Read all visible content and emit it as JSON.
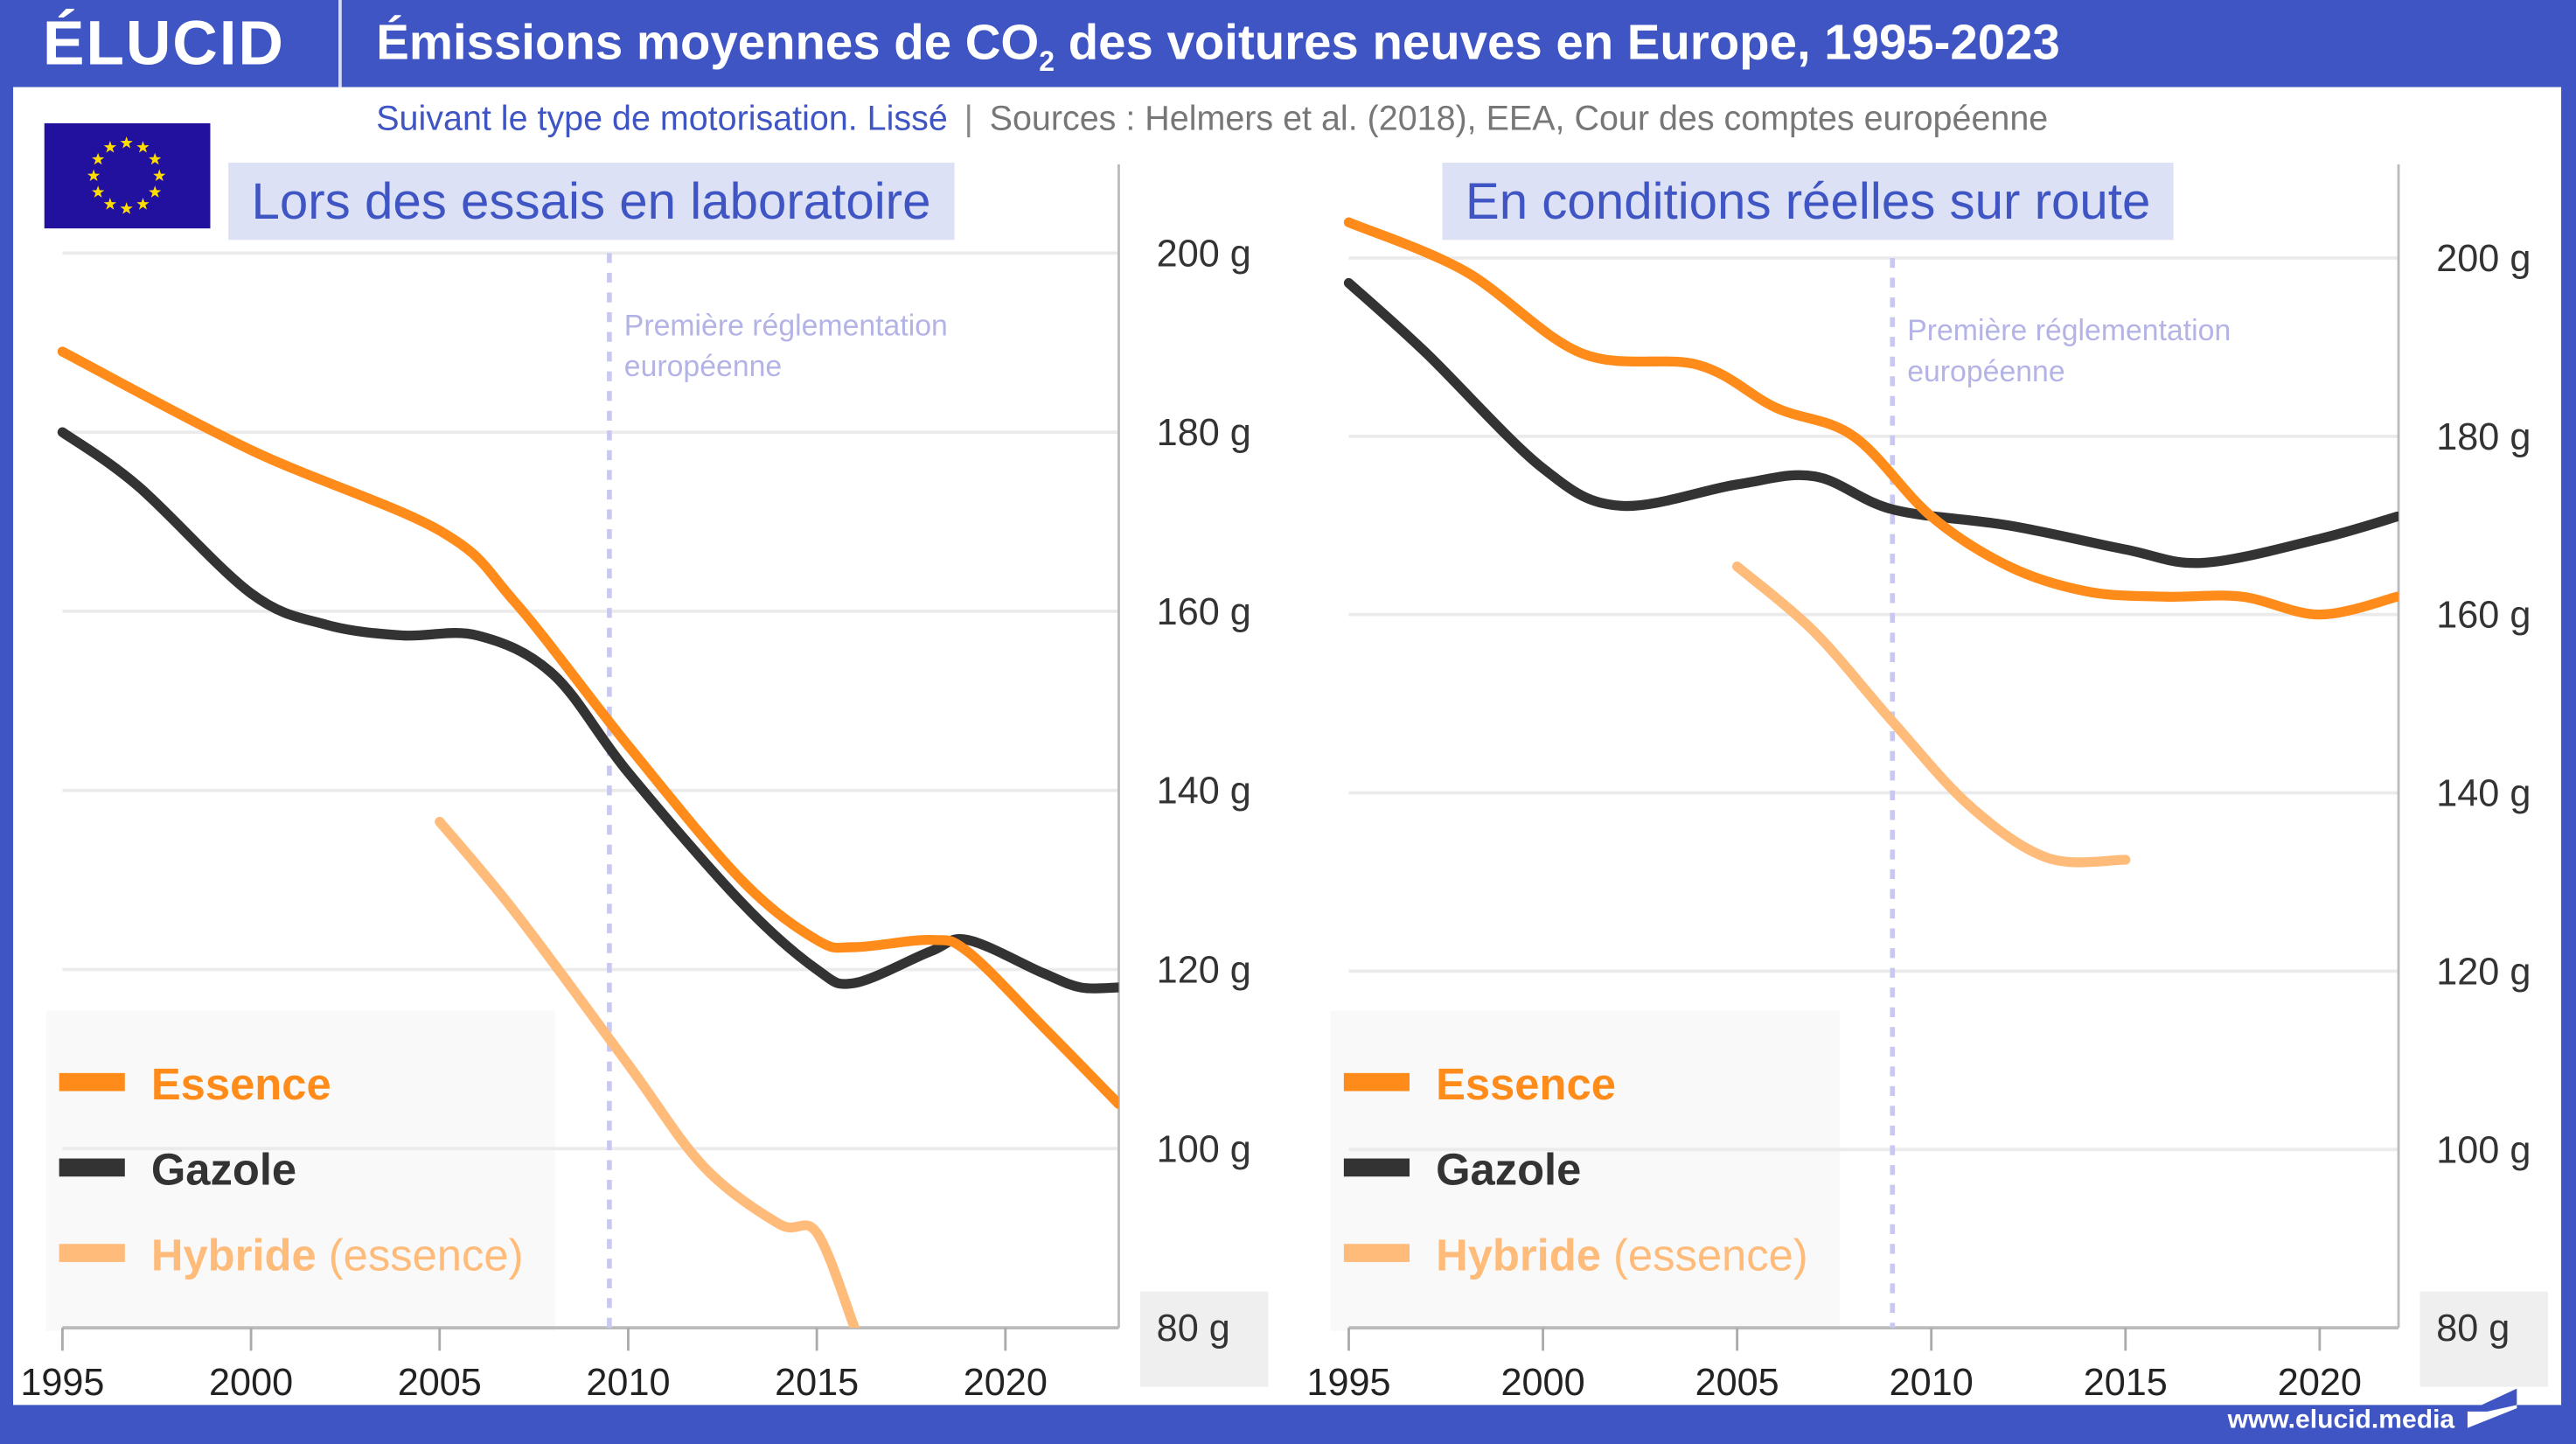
{
  "header": {
    "logo": "ÉLUCID",
    "title_pre": "Émissions moyennes de CO",
    "title_sub": "2",
    "title_post": " des voitures neuves en Europe, 1995-2023",
    "subtitle": "Suivant le type de motorisation. Lissé",
    "separator": "|",
    "sources": "Sources : Helmers et al. (2018), EEA, Cour des comptes européenne"
  },
  "footer": {
    "url": "www.elucid.media"
  },
  "colors": {
    "brand": "#3f55c4",
    "essence": "#ff8c1a",
    "gazole": "#333333",
    "hybride": "#ffbb7a",
    "regulation": "#c8c8f0",
    "panel_title_bg": "#dde1f5"
  },
  "icons": {
    "flag": "eu-flag-icon",
    "footer_logo": "elucid-chevron-icon"
  },
  "chart_data": [
    {
      "type": "line",
      "title": "Lors des essais en laboratoire",
      "xlim": [
        1995,
        2023
      ],
      "ylim": [
        80,
        200
      ],
      "x_ticks": [
        "1995",
        "2000",
        "2005",
        "2010",
        "2015",
        "2020"
      ],
      "y_ticks": [
        "200 g",
        "180 g",
        "160 g",
        "140 g",
        "120 g",
        "100 g",
        "80 g"
      ],
      "y_tick_values": [
        200,
        180,
        160,
        140,
        120,
        100,
        80
      ],
      "grid": true,
      "legend_placement": "bottom-left",
      "annotation": {
        "text": [
          "Première réglementation",
          "européenne"
        ],
        "x": 2009.5
      },
      "series": [
        {
          "name": "Essence",
          "color": "#ff8c1a",
          "points": [
            [
              1995,
              189
            ],
            [
              2000,
              178
            ],
            [
              2005,
              169
            ],
            [
              2007,
              161
            ],
            [
              2010,
              145
            ],
            [
              2013,
              130
            ],
            [
              2015,
              123.3
            ],
            [
              2016,
              122.5
            ],
            [
              2018,
              123.3
            ],
            [
              2019,
              122
            ],
            [
              2021,
              113.6
            ],
            [
              2023,
              105
            ]
          ]
        },
        {
          "name": "Gazole",
          "color": "#333333",
          "points": [
            [
              1995,
              180
            ],
            [
              1997,
              174
            ],
            [
              2000,
              162
            ],
            [
              2002,
              158.5
            ],
            [
              2004,
              157.3
            ],
            [
              2006,
              157.3
            ],
            [
              2008,
              153
            ],
            [
              2010,
              142
            ],
            [
              2013,
              127.5
            ],
            [
              2015,
              120
            ],
            [
              2016,
              118.5
            ],
            [
              2018,
              122
            ],
            [
              2019,
              123.3
            ],
            [
              2021,
              119.6
            ],
            [
              2022,
              118
            ],
            [
              2023,
              118
            ]
          ]
        },
        {
          "name": "Hybride",
          "name_suffix": " (essence)",
          "color": "#ffbb7a",
          "points": [
            [
              2005,
              136.5
            ],
            [
              2007,
              126.4
            ],
            [
              2010,
              109.4
            ],
            [
              2012,
              98
            ],
            [
              2014,
              91.6
            ],
            [
              2015,
              90.6
            ],
            [
              2016,
              80
            ]
          ]
        }
      ]
    },
    {
      "type": "line",
      "title": "En conditions réelles sur route",
      "xlim": [
        1995,
        2022
      ],
      "ylim": [
        80,
        200
      ],
      "x_ticks": [
        "1995",
        "2000",
        "2005",
        "2010",
        "2015",
        "2020"
      ],
      "y_ticks": [
        "200 g",
        "180 g",
        "160 g",
        "140 g",
        "120 g",
        "100 g",
        "80 g"
      ],
      "y_tick_values": [
        200,
        180,
        160,
        140,
        120,
        100,
        80
      ],
      "grid": true,
      "legend_placement": "bottom-left",
      "annotation": {
        "text": [
          "Première réglementation",
          "européenne"
        ],
        "x": 2009
      },
      "series": [
        {
          "name": "Essence",
          "color": "#ff8c1a",
          "points": [
            [
              1995,
              204
            ],
            [
              1998,
              198.5
            ],
            [
              2001,
              189.3
            ],
            [
              2004,
              188
            ],
            [
              2006,
              183.2
            ],
            [
              2008,
              180
            ],
            [
              2010,
              171
            ],
            [
              2012,
              165.4
            ],
            [
              2014,
              162.6
            ],
            [
              2016,
              162
            ],
            [
              2018,
              162
            ],
            [
              2020,
              160
            ],
            [
              2022,
              162
            ]
          ]
        },
        {
          "name": "Gazole",
          "color": "#333333",
          "points": [
            [
              1995,
              197.2
            ],
            [
              1997,
              189.3
            ],
            [
              2000,
              176.4
            ],
            [
              2002,
              172.2
            ],
            [
              2005,
              174.6
            ],
            [
              2007,
              175.5
            ],
            [
              2009,
              171.8
            ],
            [
              2012,
              170
            ],
            [
              2015,
              167.3
            ],
            [
              2017,
              165.8
            ],
            [
              2020,
              168.5
            ],
            [
              2022,
              171
            ]
          ]
        },
        {
          "name": "Hybride",
          "name_suffix": " (essence)",
          "color": "#ffbb7a",
          "points": [
            [
              2005,
              165.4
            ],
            [
              2007,
              158
            ],
            [
              2009,
              148
            ],
            [
              2011,
              138.5
            ],
            [
              2013,
              132.7
            ],
            [
              2015,
              132.5
            ]
          ]
        }
      ]
    }
  ]
}
